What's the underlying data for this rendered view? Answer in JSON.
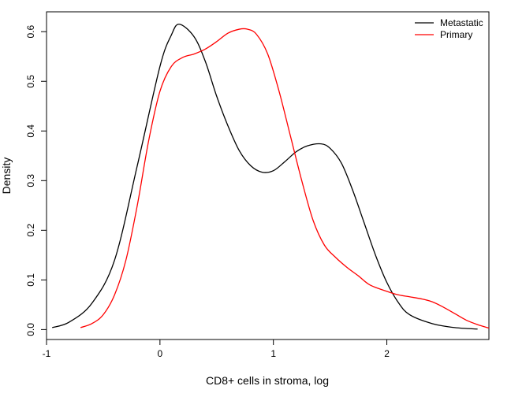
{
  "chart_data": {
    "type": "line",
    "title": "",
    "xlabel": "CD8+ cells in stroma, log",
    "ylabel": "Density",
    "xlim": [
      -1,
      2.9
    ],
    "ylim": [
      -0.02,
      0.64
    ],
    "xticks": [
      -1,
      0,
      1,
      2
    ],
    "yticks": [
      0.0,
      0.1,
      0.2,
      0.3,
      0.4,
      0.5,
      0.6
    ],
    "grid": false,
    "legend_position": "top-right",
    "series": [
      {
        "name": "Metastatic",
        "color": "#000000",
        "x": [
          -0.95,
          -0.8,
          -0.6,
          -0.4,
          -0.2,
          0.0,
          0.1,
          0.17,
          0.3,
          0.4,
          0.5,
          0.6,
          0.7,
          0.8,
          0.9,
          1.0,
          1.1,
          1.2,
          1.3,
          1.42,
          1.5,
          1.6,
          1.7,
          1.8,
          1.9,
          2.0,
          2.1,
          2.2,
          2.4,
          2.6,
          2.8
        ],
        "y": [
          0.004,
          0.015,
          0.053,
          0.14,
          0.33,
          0.53,
          0.593,
          0.615,
          0.59,
          0.54,
          0.47,
          0.41,
          0.36,
          0.33,
          0.317,
          0.32,
          0.338,
          0.358,
          0.37,
          0.374,
          0.365,
          0.335,
          0.28,
          0.215,
          0.15,
          0.095,
          0.055,
          0.03,
          0.012,
          0.004,
          0.001
        ]
      },
      {
        "name": "Primary",
        "color": "#ff0000",
        "x": [
          -0.7,
          -0.6,
          -0.5,
          -0.4,
          -0.3,
          -0.2,
          -0.1,
          0.0,
          0.1,
          0.2,
          0.3,
          0.4,
          0.5,
          0.6,
          0.7,
          0.77,
          0.85,
          0.95,
          1.05,
          1.15,
          1.25,
          1.35,
          1.45,
          1.55,
          1.65,
          1.75,
          1.85,
          2.0,
          2.1,
          2.2,
          2.3,
          2.4,
          2.5,
          2.6,
          2.7,
          2.8,
          2.9
        ],
        "y": [
          0.004,
          0.012,
          0.03,
          0.07,
          0.14,
          0.25,
          0.38,
          0.48,
          0.53,
          0.548,
          0.555,
          0.565,
          0.58,
          0.597,
          0.605,
          0.605,
          0.595,
          0.555,
          0.48,
          0.39,
          0.3,
          0.22,
          0.17,
          0.145,
          0.125,
          0.108,
          0.09,
          0.077,
          0.07,
          0.066,
          0.062,
          0.056,
          0.045,
          0.032,
          0.019,
          0.01,
          0.003
        ]
      }
    ]
  }
}
